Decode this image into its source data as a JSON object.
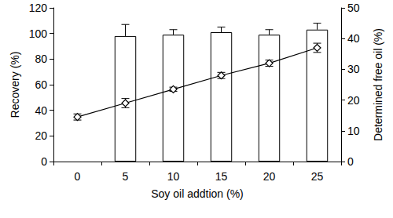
{
  "chart_data": {
    "type": "bar",
    "x_label": "Soy oil addtion (%)",
    "y_label": "Recovery (%)",
    "y2_label": "Determined free oil (%)",
    "categories": [
      "0",
      "5",
      "10",
      "15",
      "20",
      "25"
    ],
    "ylim": [
      0,
      120
    ],
    "yticks": [
      0,
      20,
      40,
      60,
      80,
      100,
      120
    ],
    "y2lim": [
      0,
      50
    ],
    "y2ticks": [
      0,
      10,
      20,
      30,
      40,
      50
    ],
    "grid": false,
    "series": [
      {
        "type": "bar",
        "color": "#ffffff",
        "values": [
          null,
          98,
          99,
          101,
          99,
          103
        ],
        "errors": [
          null,
          9,
          4,
          4,
          4,
          5
        ]
      },
      {
        "type": "line",
        "axis": "y2",
        "marker": "diamond",
        "color": "#000000",
        "values": [
          14.5,
          19,
          23.5,
          28,
          32,
          37
        ],
        "errors": [
          1,
          1.5,
          0.7,
          1,
          1,
          1.5
        ]
      }
    ]
  }
}
